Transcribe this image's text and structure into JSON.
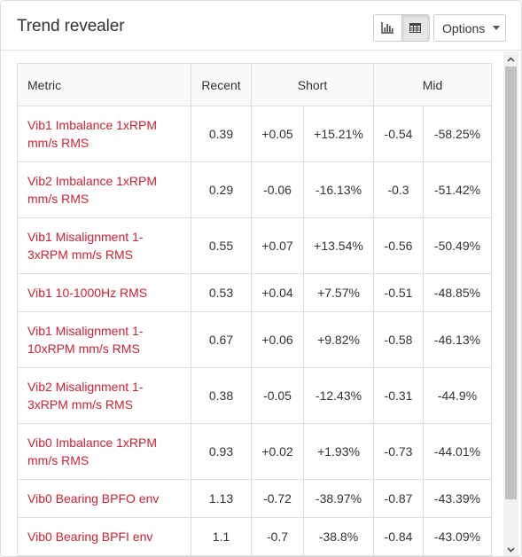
{
  "header": {
    "title": "Trend revealer",
    "options_label": "Options"
  },
  "table": {
    "columns": [
      "Metric",
      "Recent",
      "Short",
      "Mid"
    ],
    "rows": [
      {
        "metric": "Vib1 Imbalance 1xRPM mm/s RMS",
        "recent": "0.39",
        "short_delta": "+0.05",
        "short_pct": "+15.21%",
        "mid_delta": "-0.54",
        "mid_pct": "-58.25%"
      },
      {
        "metric": "Vib2 Imbalance 1xRPM mm/s RMS",
        "recent": "0.29",
        "short_delta": "-0.06",
        "short_pct": "-16.13%",
        "mid_delta": "-0.3",
        "mid_pct": "-51.42%"
      },
      {
        "metric": "Vib1 Misalignment 1-3xRPM mm/s RMS",
        "recent": "0.55",
        "short_delta": "+0.07",
        "short_pct": "+13.54%",
        "mid_delta": "-0.56",
        "mid_pct": "-50.49%"
      },
      {
        "metric": "Vib1 10-1000Hz RMS",
        "recent": "0.53",
        "short_delta": "+0.04",
        "short_pct": "+7.57%",
        "mid_delta": "-0.51",
        "mid_pct": "-48.85%"
      },
      {
        "metric": "Vib1 Misalignment 1-10xRPM mm/s RMS",
        "recent": "0.67",
        "short_delta": "+0.06",
        "short_pct": "+9.82%",
        "mid_delta": "-0.58",
        "mid_pct": "-46.13%"
      },
      {
        "metric": "Vib2 Misalignment 1-3xRPM mm/s RMS",
        "recent": "0.38",
        "short_delta": "-0.05",
        "short_pct": "-12.43%",
        "mid_delta": "-0.31",
        "mid_pct": "-44.9%"
      },
      {
        "metric": "Vib0 Imbalance 1xRPM mm/s RMS",
        "recent": "0.93",
        "short_delta": "+0.02",
        "short_pct": "+1.93%",
        "mid_delta": "-0.73",
        "mid_pct": "-44.01%"
      },
      {
        "metric": "Vib0 Bearing BPFO env",
        "recent": "1.13",
        "short_delta": "-0.72",
        "short_pct": "-38.97%",
        "mid_delta": "-0.87",
        "mid_pct": "-43.39%"
      },
      {
        "metric": "Vib0 Bearing BPFI env",
        "recent": "1.1",
        "short_delta": "-0.7",
        "short_pct": "-38.8%",
        "mid_delta": "-0.84",
        "mid_pct": "-43.09%"
      }
    ]
  },
  "colors": {
    "metric_link": "#cc2233",
    "border": "#dddddd"
  },
  "icons": {
    "chart_view": "bar-chart-icon",
    "table_view": "table-icon",
    "dropdown": "caret-down-icon"
  }
}
